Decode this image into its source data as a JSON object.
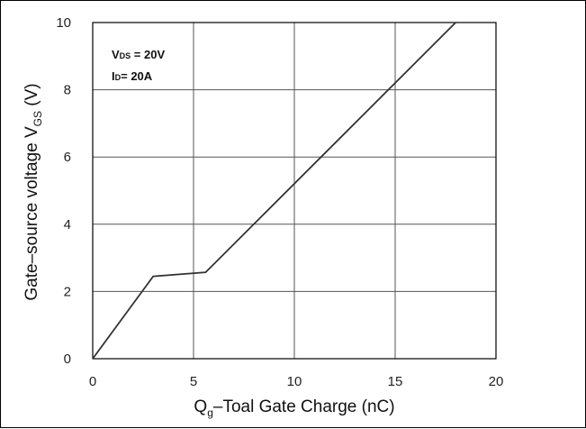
{
  "chart_data": {
    "type": "line",
    "title": "",
    "xlabel": {
      "main": "Q",
      "sub": "g",
      "rest": "–Toal Gate Charge  (nC)"
    },
    "ylabel": {
      "main": "Gate–source voltage V",
      "sub": "GS",
      "rest": " (V)"
    },
    "xlim": [
      0,
      20
    ],
    "ylim": [
      0,
      10
    ],
    "xticks": [
      "0",
      "5",
      "10",
      "15",
      "20"
    ],
    "yticks": [
      "0",
      "2",
      "4",
      "6",
      "8",
      "10"
    ],
    "grid": true,
    "annotations": [
      {
        "main": "V",
        "sub": "DS",
        "rest": " = 20V"
      },
      {
        "main": "I",
        "sub": "D",
        "rest": "= 20A"
      }
    ],
    "series": [
      {
        "x": [
          0,
          3.0,
          5.6,
          18.0
        ],
        "y": [
          0,
          2.45,
          2.57,
          10.0
        ]
      }
    ],
    "colors": {
      "line": "#333333",
      "grid": "#555555",
      "axes": "#000000"
    }
  }
}
